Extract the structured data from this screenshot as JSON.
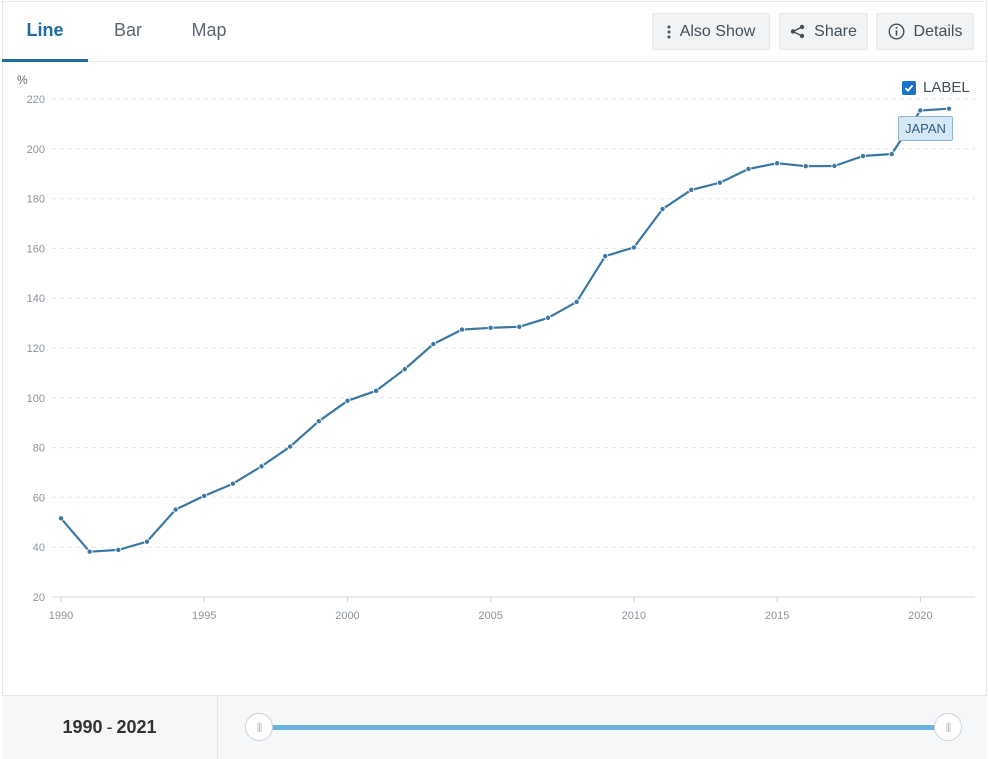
{
  "tabs": [
    {
      "label": "Line",
      "active": true
    },
    {
      "label": "Bar",
      "active": false
    },
    {
      "label": "Map",
      "active": false
    }
  ],
  "actions": {
    "also_show": "Also Show",
    "share": "Share",
    "details": "Details"
  },
  "legend": {
    "checkbox_label": "LABEL",
    "checked": true,
    "series_tag": "JAPAN"
  },
  "range": {
    "start": "1990",
    "separator": "-",
    "end": "2021"
  },
  "colors": {
    "line": "#3a77a3",
    "accent": "#1f6aa0",
    "slider": "#6ab1e0"
  },
  "chart_data": {
    "type": "line",
    "ylabel": "%",
    "xlabel": "",
    "ylim": [
      20,
      220
    ],
    "yticks": [
      20,
      40,
      60,
      80,
      100,
      120,
      140,
      160,
      180,
      200,
      220
    ],
    "xlim": [
      1990,
      2021
    ],
    "xticks": [
      1990,
      1995,
      2000,
      2005,
      2010,
      2015,
      2020
    ],
    "grid": true,
    "series": [
      {
        "name": "JAPAN",
        "x": [
          1990,
          1991,
          1992,
          1993,
          1994,
          1995,
          1996,
          1997,
          1998,
          1999,
          2000,
          2001,
          2002,
          2003,
          2004,
          2005,
          2006,
          2007,
          2008,
          2009,
          2010,
          2011,
          2012,
          2013,
          2014,
          2015,
          2016,
          2017,
          2018,
          2019,
          2020,
          2021
        ],
        "y": [
          51.6,
          38.2,
          38.9,
          42.2,
          55.1,
          60.6,
          65.5,
          72.5,
          80.4,
          90.6,
          98.8,
          102.8,
          111.5,
          121.6,
          127.4,
          128.1,
          128.5,
          132.1,
          138.5,
          156.9,
          160.4,
          175.8,
          183.5,
          186.4,
          191.9,
          194.2,
          193.0,
          193.1,
          197.1,
          197.9,
          215.4,
          216.1
        ]
      }
    ]
  }
}
